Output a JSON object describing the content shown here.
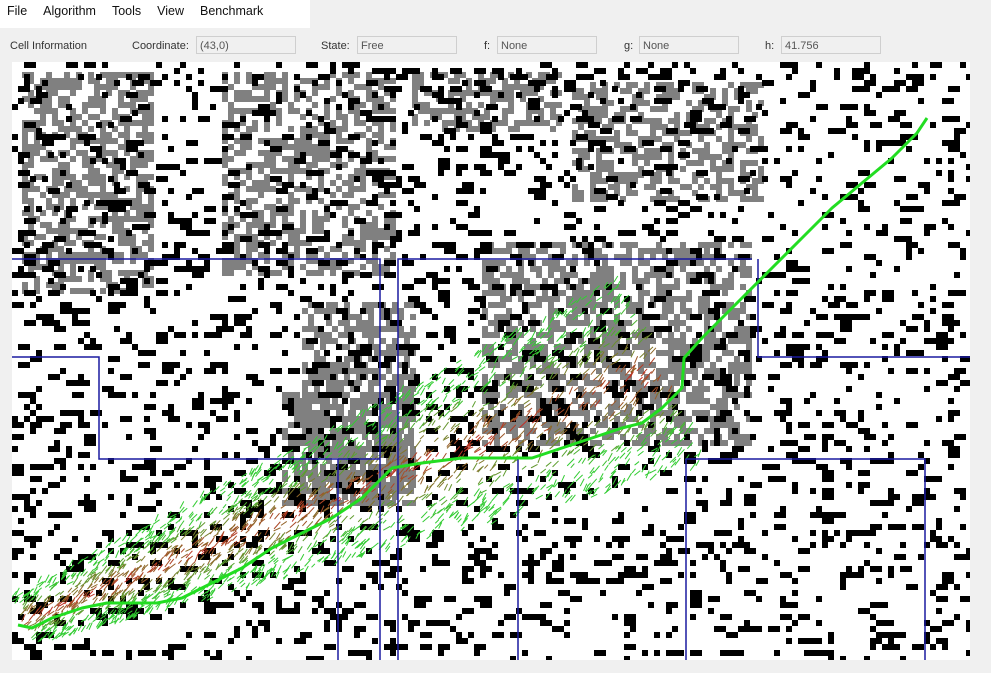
{
  "menu": {
    "file": "File",
    "algorithm": "Algorithm",
    "tools": "Tools",
    "view": "View",
    "benchmark": "Benchmark"
  },
  "cell_info": {
    "section_label": "Cell Information",
    "coordinate_label": "Coordinate:",
    "coordinate_value": "(43,0)",
    "state_label": "State:",
    "state_value": "Free",
    "f_label": "f:",
    "f_value": "None",
    "g_label": "g:",
    "g_value": "None",
    "h_label": "h:",
    "h_value": "41.756"
  },
  "colors": {
    "obstacle": "#000000",
    "unknown_cell": "#808080",
    "free": "#ffffff",
    "region_border": "#1a1aa0",
    "path": "#22dd22",
    "explored_near": "#33cc33",
    "explored_far": "#cc2222"
  }
}
